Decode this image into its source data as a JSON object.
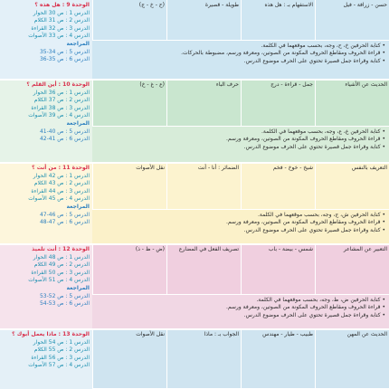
{
  "units": [
    {
      "title": "الوحدة 9 : هل هذه ؟",
      "lessons": [
        "الدرس 1 : ص 30 الحوار",
        "الدرس 2 : ص 31 الكلام",
        "الدرس 3 : ص 32 القراءة",
        "الدرس 4 : ص 33 الأصوات"
      ],
      "review_title": "المراجعة",
      "review": [
        "الدرس 5 : ص 34-35",
        "الدرس 6 : ص 35-36"
      ],
      "cells": [
        "حسن - زرافة - فيل",
        "الاستفهام بـ : هل هذه",
        "طويلة - قصيرة",
        "(ح - خ - ج)"
      ],
      "notes": [
        "• كتابة الحرفين خ، ح، وجه، بحسب موقعهما في الكلمة.",
        "• قراءة الحروف ومقاطع الحروف المكونة من الصوتين، ومعرفة ورسم، مضبوطة بالحركات.",
        "• كتابة وقراءة جمل قصيرة تحتوي على الحرف موضوع الدرس."
      ]
    },
    {
      "title": "الوحدة 10 : أين القلم ؟",
      "lessons": [
        "الدرس 1 : ص 36 الحوار",
        "الدرس 2 : ص 37 الكلام",
        "الدرس 3 : ص 38 القراءة",
        "الدرس 4 : ص 39 الأصوات"
      ],
      "review_title": "المراجعة",
      "review": [
        "الدرس 5 : ص 40-41",
        "الدرس 6 : ص 41-42"
      ],
      "cells": [
        "الحديث عن الأشياء",
        "جمل - قراءة - درج",
        "حرف الباء",
        "(ع - غ - خ)"
      ],
      "notes": [
        "• كتابة الحرفين غ، ع، وجه، بحسب موقعهما في الكلمة.",
        "• قراءة الحروف ومقاطع الحروف المكونة من الصوتين، ومعرفة ورسم.",
        "• كتابة وقراءة جمل قصيرة تحتوي على الحرف موضوع الدرس."
      ]
    },
    {
      "title": "الوحدة 11 : من أنت ؟",
      "lessons": [
        "الدرس 1 : ص 42 الحوار",
        "الدرس 2 : ص 43 الكلام",
        "الدرس 3 : ص 44 القراءة",
        "الدرس 4 : ص 45 الأصوات"
      ],
      "review_title": "المراجعة",
      "review": [
        "الدرس 5 : ص 46-47",
        "الدرس 6 : ص 47-48"
      ],
      "cells": [
        "التعريف بالنفس",
        "شيخ - خوخ - فخم",
        "الضمائر : أنا - أنت",
        "نقل الأصوات"
      ],
      "notes": [
        "• كتابة الحرفين ش، ج، وجه، بحسب موقعهما في الكلمة.",
        "• قراءة الحروف ومقاطع الحروف المكونة من الصوتين، ومعرفة ورسم.",
        "• كتابة وقراءة جمل قصيرة تحتوي على الحرف موضوع الدرس."
      ]
    },
    {
      "title": "الوحدة 12 : أنت تلميذ",
      "lessons": [
        "الدرس 1 : ص 48 الحوار",
        "الدرس 2 : ص 49 الكلام",
        "الدرس 3 : ص 50 القراءة",
        "الدرس 4 : ص 51 الأصوات"
      ],
      "review_title": "المراجعة",
      "review": [
        "الدرس 5 : ص 52-53",
        "الدرس 6 : ص 53-54"
      ],
      "cells": [
        "التعبير عن المشاعر",
        "شمس - بيضة - باب",
        "تصريف الفعل في المضارع",
        "(ض - ظ - ذ)"
      ],
      "notes": [
        "• كتابة الحرفين ض، ظ، وجه، بحسب موقعهما في الكلمة.",
        "• قراءة الحروف ومقاطع الحروف المكونة من الصوتين، ومعرفة ورسم.",
        "• كتابة وقراءة جمل قصيرة تحتوي على الحرف موضوع الدرس."
      ]
    },
    {
      "title": "الوحدة 13 : ماذا يعمل أبوك ؟",
      "lessons": [
        "الدرس 1 : ص 54 الحوار",
        "الدرس 2 : ص 55 الكلام",
        "الدرس 3 : ص 56 القراءة",
        "الدرس 4 : ص 57 الأصوات"
      ],
      "review_title": "",
      "review": [],
      "cells": [
        "الحديث عن المهن",
        "طبيب - طيار - مهندس",
        "الجواب بـ : ماذا",
        "نقل الأصوات"
      ],
      "notes": []
    }
  ]
}
